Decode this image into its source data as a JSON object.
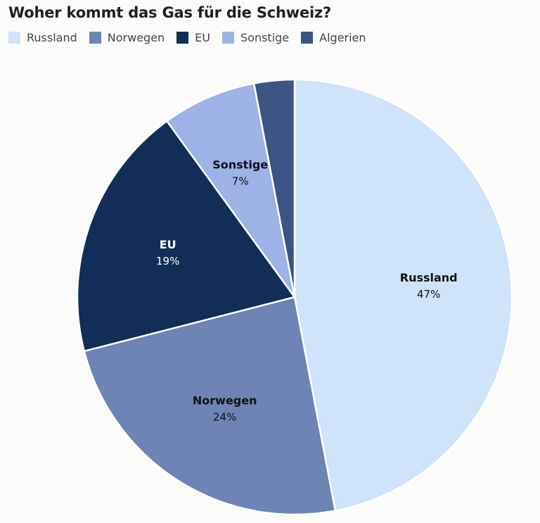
{
  "chart_data": {
    "type": "pie",
    "title": "Woher kommt das Gas für die Schweiz?",
    "unit": "%",
    "legend_position": "top-left",
    "slices": [
      {
        "name": "Russland",
        "value": 47,
        "label": "47%",
        "color": "#cfe3fa",
        "text_color": "#111111"
      },
      {
        "name": "Norwegen",
        "value": 24,
        "label": "24%",
        "color": "#6d84b5",
        "text_color": "#111111"
      },
      {
        "name": "EU",
        "value": 19,
        "label": "19%",
        "color": "#122d57",
        "text_color": "#ffffff"
      },
      {
        "name": "Sonstige",
        "value": 7,
        "label": "7%",
        "color": "#9db2e6",
        "text_color": "#111111"
      },
      {
        "name": "Algerien",
        "value": 3,
        "label": "",
        "color": "#3c5484",
        "text_color": "#ffffff"
      }
    ]
  }
}
